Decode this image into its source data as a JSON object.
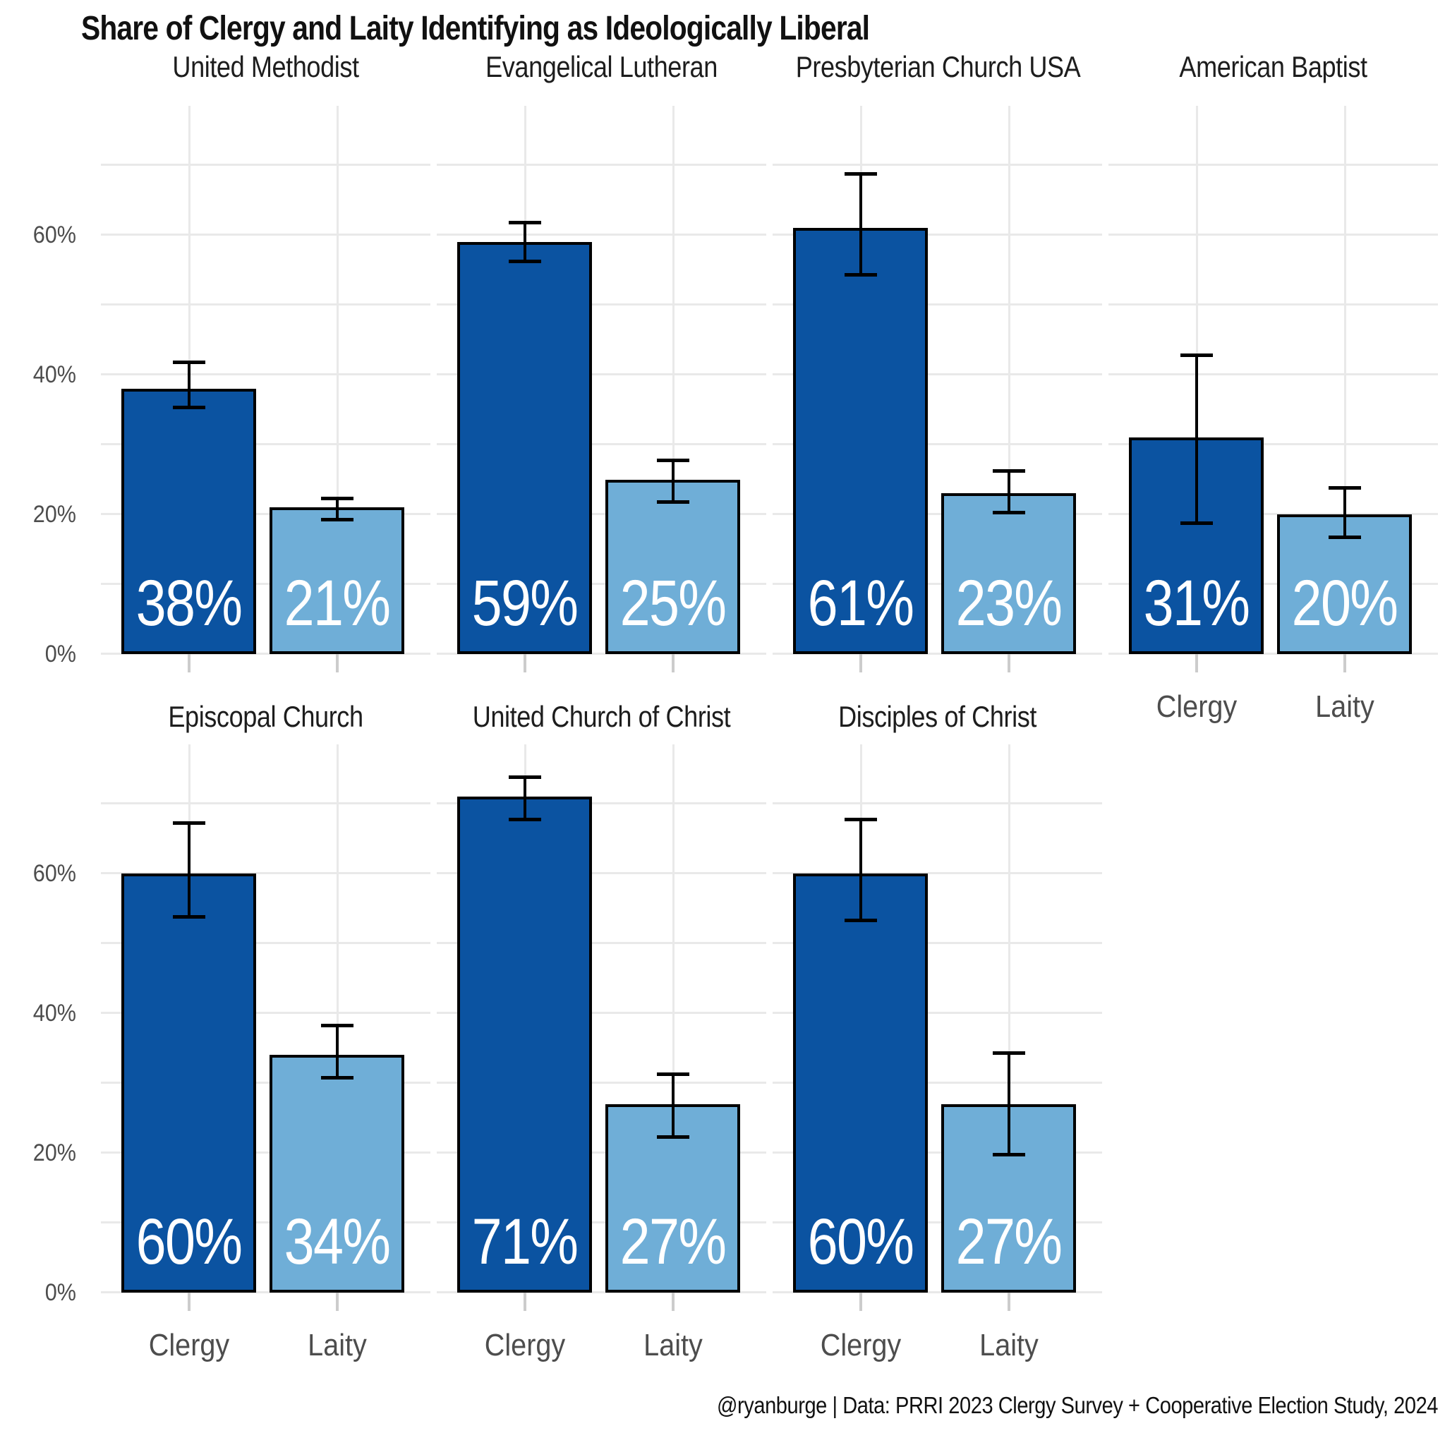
{
  "title": "Share of Clergy and Laity Identifying as Ideologically Liberal",
  "footer": "@ryanburge | Data: PRRI 2023 Clergy Survey + Cooperative Election Study, 2024",
  "chart_data": {
    "type": "bar",
    "title": "Share of Clergy and Laity Identifying as Ideologically Liberal",
    "x_categories": [
      "Clergy",
      "Laity"
    ],
    "y_tick_labels": [
      "0%",
      "20%",
      "40%",
      "60%"
    ],
    "y_tick_values_percent": [
      0,
      20,
      40,
      60
    ],
    "y_axis_range_percent": [
      0,
      78
    ],
    "gridlines_percent": [
      10,
      20,
      30,
      40,
      50,
      60,
      70
    ],
    "grid": "on",
    "legend_position": "none",
    "error_bars": "95% confidence intervals",
    "colors": {
      "clergy_bar": "#0B53A1",
      "laity_bar": "#6FAED7",
      "bar_border": "#000000",
      "gridline": "#E9E9E9",
      "axis_text": "#4D4D4D",
      "facet_title_text": "#1D1D1D",
      "title_text": "#111111",
      "bar_label_text": "#FFFFFF"
    },
    "facets": [
      {
        "title": "United Methodist",
        "row": 0,
        "col": 0,
        "show_x_axis": false,
        "bars": [
          {
            "category": "Clergy",
            "value": 38,
            "label": "38%",
            "ci_low": 35,
            "ci_high": 42
          },
          {
            "category": "Laity",
            "value": 21,
            "label": "21%",
            "ci_low": 19,
            "ci_high": 22.5
          }
        ]
      },
      {
        "title": "Evangelical Lutheran",
        "row": 0,
        "col": 1,
        "show_x_axis": false,
        "bars": [
          {
            "category": "Clergy",
            "value": 59,
            "label": "59%",
            "ci_low": 56,
            "ci_high": 62
          },
          {
            "category": "Laity",
            "value": 25,
            "label": "25%",
            "ci_low": 21.5,
            "ci_high": 28
          }
        ]
      },
      {
        "title": "Presbyterian Church USA",
        "row": 0,
        "col": 2,
        "show_x_axis": false,
        "bars": [
          {
            "category": "Clergy",
            "value": 61,
            "label": "61%",
            "ci_low": 54,
            "ci_high": 69
          },
          {
            "category": "Laity",
            "value": 23,
            "label": "23%",
            "ci_low": 20,
            "ci_high": 26.5
          }
        ]
      },
      {
        "title": "American Baptist",
        "row": 0,
        "col": 3,
        "show_x_axis": true,
        "bars": [
          {
            "category": "Clergy",
            "value": 31,
            "label": "31%",
            "ci_low": 18.5,
            "ci_high": 43
          },
          {
            "category": "Laity",
            "value": 20,
            "label": "20%",
            "ci_low": 16.5,
            "ci_high": 24
          }
        ]
      },
      {
        "title": "Episcopal Church",
        "row": 1,
        "col": 0,
        "show_x_axis": true,
        "bars": [
          {
            "category": "Clergy",
            "value": 60,
            "label": "60%",
            "ci_low": 53.5,
            "ci_high": 67.5
          },
          {
            "category": "Laity",
            "value": 34,
            "label": "34%",
            "ci_low": 30.5,
            "ci_high": 38.5
          }
        ]
      },
      {
        "title": "United Church of Christ",
        "row": 1,
        "col": 1,
        "show_x_axis": true,
        "bars": [
          {
            "category": "Clergy",
            "value": 71,
            "label": "71%",
            "ci_low": 67.5,
            "ci_high": 74
          },
          {
            "category": "Laity",
            "value": 27,
            "label": "27%",
            "ci_low": 22,
            "ci_high": 31.5
          }
        ]
      },
      {
        "title": "Disciples of Christ",
        "row": 1,
        "col": 2,
        "show_x_axis": true,
        "bars": [
          {
            "category": "Clergy",
            "value": 60,
            "label": "60%",
            "ci_low": 53,
            "ci_high": 68
          },
          {
            "category": "Laity",
            "value": 27,
            "label": "27%",
            "ci_low": 19.5,
            "ci_high": 34.5
          }
        ]
      }
    ]
  }
}
